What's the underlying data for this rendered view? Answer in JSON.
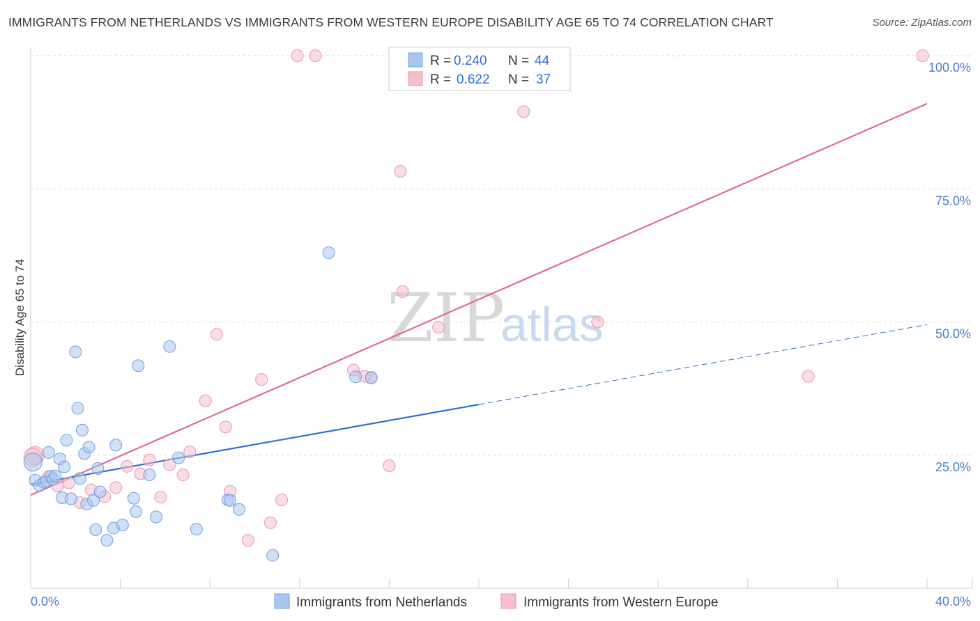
{
  "header": {
    "title": "IMMIGRANTS FROM NETHERLANDS VS IMMIGRANTS FROM WESTERN EUROPE DISABILITY AGE 65 TO 74 CORRELATION CHART",
    "source": "Source: ZipAtlas.com"
  },
  "watermark": {
    "zip": "ZIP",
    "atlas": "atlas"
  },
  "chart_data": {
    "type": "scatter",
    "title": "IMMIGRANTS FROM NETHERLANDS VS IMMIGRANTS FROM WESTERN EUROPE DISABILITY AGE 65 TO 74 CORRELATION CHART",
    "xlabel": "",
    "ylabel": "Disability Age 65 to 74",
    "xlim": [
      0,
      40
    ],
    "ylim": [
      0,
      100
    ],
    "x_tick_labels": [
      "0.0%",
      "40.0%"
    ],
    "y_ticks": [
      25,
      50,
      75,
      100
    ],
    "y_tick_labels": [
      "25.0%",
      "50.0%",
      "75.0%",
      "100.0%"
    ],
    "grid": true,
    "legend_items": [
      {
        "r_label": "R =",
        "r_value": "0.240",
        "n_label": "N =",
        "n_value": "44"
      },
      {
        "r_label": "R =",
        "r_value": "0.622",
        "n_label": "N =",
        "n_value": "37"
      }
    ],
    "series": [
      {
        "name": "Immigrants from Netherlands",
        "color": "#6f9fe0",
        "fill": "#a9c6f0",
        "line_color": "#2f6fd0",
        "r": 0.24,
        "n": 44,
        "trend": {
          "x0": 0,
          "y0": 19.5,
          "x1": 20,
          "y1": 34.5,
          "dashed_to_x": 40,
          "dashed_to_y": 49.5
        },
        "points": [
          [
            0.1,
            23.7
          ],
          [
            0.2,
            20.3
          ],
          [
            0.4,
            19.3
          ],
          [
            0.6,
            19.9
          ],
          [
            0.7,
            20.1
          ],
          [
            0.8,
            25.5
          ],
          [
            0.9,
            21.0
          ],
          [
            1.0,
            20.5
          ],
          [
            1.1,
            21.1
          ],
          [
            1.3,
            24.3
          ],
          [
            1.4,
            17.0
          ],
          [
            1.5,
            22.8
          ],
          [
            1.6,
            27.8
          ],
          [
            1.8,
            16.8
          ],
          [
            2.0,
            44.4
          ],
          [
            2.1,
            33.8
          ],
          [
            2.2,
            20.6
          ],
          [
            2.3,
            29.7
          ],
          [
            2.4,
            25.3
          ],
          [
            2.5,
            15.8
          ],
          [
            2.6,
            26.5
          ],
          [
            2.8,
            16.5
          ],
          [
            2.9,
            11.0
          ],
          [
            3.0,
            22.5
          ],
          [
            3.1,
            18.1
          ],
          [
            3.4,
            9.0
          ],
          [
            3.7,
            11.3
          ],
          [
            3.8,
            26.9
          ],
          [
            4.1,
            11.9
          ],
          [
            4.6,
            16.9
          ],
          [
            4.7,
            14.4
          ],
          [
            4.8,
            41.8
          ],
          [
            5.3,
            21.3
          ],
          [
            5.6,
            13.4
          ],
          [
            6.2,
            45.4
          ],
          [
            6.6,
            24.5
          ],
          [
            7.4,
            11.1
          ],
          [
            8.8,
            16.6
          ],
          [
            8.9,
            16.5
          ],
          [
            9.3,
            14.8
          ],
          [
            10.8,
            6.2
          ],
          [
            13.3,
            63.0
          ],
          [
            15.2,
            39.5
          ],
          [
            14.5,
            39.7
          ]
        ]
      },
      {
        "name": "Immigrants from Western Europe",
        "color": "#e995b0",
        "fill": "#f5bfd0",
        "line_color": "#e06a93",
        "r": 0.622,
        "n": 37,
        "trend": {
          "x0": 0,
          "y0": 17.5,
          "x1": 40,
          "y1": 91.0
        },
        "points": [
          [
            0.2,
            24.9
          ],
          [
            0.8,
            21.0
          ],
          [
            1.2,
            19.2
          ],
          [
            1.7,
            19.8
          ],
          [
            2.2,
            16.1
          ],
          [
            2.7,
            18.5
          ],
          [
            3.3,
            17.2
          ],
          [
            3.8,
            18.9
          ],
          [
            4.3,
            22.9
          ],
          [
            4.9,
            21.5
          ],
          [
            5.3,
            24.1
          ],
          [
            5.8,
            17.1
          ],
          [
            6.2,
            23.2
          ],
          [
            6.8,
            21.3
          ],
          [
            7.1,
            25.6
          ],
          [
            7.8,
            35.2
          ],
          [
            8.3,
            47.7
          ],
          [
            8.7,
            30.3
          ],
          [
            8.9,
            18.2
          ],
          [
            9.7,
            9.0
          ],
          [
            10.3,
            39.2
          ],
          [
            10.7,
            12.3
          ],
          [
            11.2,
            16.6
          ],
          [
            11.9,
            100.0
          ],
          [
            12.7,
            100.0
          ],
          [
            14.4,
            41.0
          ],
          [
            14.9,
            39.8
          ],
          [
            15.2,
            39.6
          ],
          [
            16.0,
            23.0
          ],
          [
            16.5,
            78.3
          ],
          [
            16.6,
            55.7
          ],
          [
            18.2,
            49.0
          ],
          [
            22.0,
            89.5
          ],
          [
            25.3,
            50.0
          ],
          [
            34.7,
            39.8
          ],
          [
            39.8,
            100.0
          ],
          [
            0.1,
            24.6
          ]
        ]
      }
    ]
  }
}
